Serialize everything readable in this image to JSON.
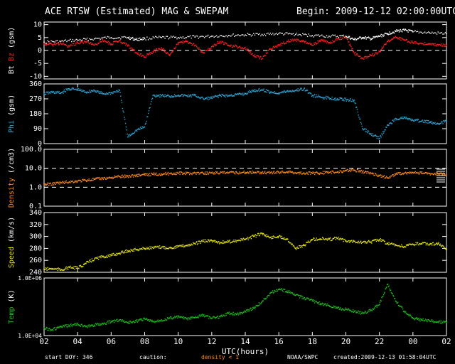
{
  "header": {
    "title": "ACE RTSW (Estimated) MAG & SWEPAM",
    "begin": "Begin: 2009-12-12 02:00:00UTC"
  },
  "footer": {
    "start_doy": "start DOY: 346",
    "caution": "caution:",
    "density_note": "density < 1",
    "source": "NOAA/SWPC",
    "created": "created:2009-12-13 01:58:04UTC"
  },
  "colors": {
    "bt": "#ffffff",
    "bz": "#ff2020",
    "phi": "#2aa7d8",
    "density": "#ff8c1a",
    "speed": "#e6e600",
    "temp": "#18c018",
    "caution": "#ff8c1a",
    "frame": "#ffffff",
    "background": "#000000"
  },
  "chart_data": [
    {
      "type": "scatter",
      "xlabel": "UTC(hours)",
      "x_ticks": [
        "02",
        "04",
        "06",
        "08",
        "10",
        "12",
        "14",
        "16",
        "18",
        "20",
        "22",
        "00",
        "02"
      ],
      "ylabel_parts": [
        "Bt",
        "Bz",
        "(gsm)"
      ],
      "ylim": [
        -11,
        11
      ],
      "y_ticks": [
        "10",
        "5",
        "0",
        "-5",
        "-10"
      ],
      "series": [
        {
          "name": "Bt",
          "color": "#ffffff",
          "x": [
            0,
            1,
            2,
            3,
            4,
            5,
            5.5,
            6,
            7,
            8,
            9,
            10,
            11,
            12,
            13,
            14,
            15,
            16,
            17,
            18,
            18.5,
            19,
            19.5,
            20,
            20.5,
            21,
            21.5,
            22,
            23,
            24
          ],
          "y": [
            3.2,
            3.5,
            4,
            4.5,
            5,
            5,
            4.2,
            4.6,
            5,
            5,
            5.2,
            5.5,
            5.8,
            6,
            6.2,
            6.5,
            6.2,
            5.8,
            5.5,
            5.5,
            4.2,
            5,
            4.5,
            5.5,
            6.5,
            7.5,
            7.8,
            7.2,
            6.8,
            6.5
          ]
        },
        {
          "name": "Bz",
          "color": "#ff2020",
          "x": [
            0,
            0.5,
            1,
            1.5,
            2,
            2.5,
            3,
            3.5,
            4,
            4.5,
            5,
            5.5,
            6,
            6.5,
            7,
            7.5,
            8,
            8.5,
            9,
            9.5,
            10,
            10.5,
            11,
            11.5,
            12,
            12.5,
            13,
            13.5,
            14,
            14.5,
            15,
            15.5,
            16,
            16.5,
            17,
            17.5,
            18,
            18.5,
            19,
            19.5,
            20,
            20.5,
            21,
            21.5,
            22,
            22.5,
            23,
            23.5,
            24
          ],
          "y": [
            2.5,
            2.2,
            2.8,
            1.5,
            3,
            3.5,
            2,
            4,
            2.5,
            3.8,
            2,
            -1,
            -2.5,
            -0.5,
            1,
            -2,
            3,
            3.5,
            2,
            -1,
            1.5,
            3.5,
            2,
            1.5,
            1,
            -2,
            -3,
            0.5,
            2,
            3.5,
            4,
            3.5,
            2,
            4,
            3,
            4.5,
            5,
            -1,
            -3,
            -2,
            -0.5,
            3.5,
            5,
            4,
            3,
            2.8,
            2.5,
            2.2,
            2
          ]
        }
      ]
    },
    {
      "type": "scatter",
      "ylabel": "Phi (gsm)",
      "ylim": [
        0,
        360
      ],
      "y_ticks": [
        "360",
        "270",
        "180",
        "90",
        "0"
      ],
      "series": [
        {
          "name": "Phi",
          "color": "#2aa7d8",
          "x": [
            0,
            0.5,
            1,
            1.5,
            2,
            2.5,
            3,
            3.5,
            4,
            4.5,
            5,
            5.5,
            6,
            6.5,
            7,
            7.5,
            8,
            8.5,
            9,
            9.5,
            10,
            10.5,
            11,
            11.5,
            12,
            12.5,
            13,
            13.5,
            14,
            14.5,
            15,
            15.5,
            16,
            16.5,
            17,
            17.5,
            18,
            18.5,
            19,
            19.5,
            20,
            20.5,
            21,
            21.5,
            22,
            22.5,
            23,
            23.5,
            24
          ],
          "y": [
            300,
            310,
            305,
            330,
            325,
            310,
            320,
            300,
            305,
            320,
            40,
            80,
            100,
            290,
            290,
            285,
            292,
            288,
            290,
            270,
            275,
            290,
            288,
            295,
            300,
            320,
            325,
            310,
            305,
            315,
            320,
            330,
            290,
            280,
            275,
            270,
            265,
            262,
            90,
            60,
            30,
            110,
            150,
            155,
            140,
            135,
            130,
            120,
            135
          ]
        }
      ]
    },
    {
      "type": "scatter",
      "ylabel": "Density (/cm3)",
      "yscale": "log",
      "ylim": [
        0.1,
        100
      ],
      "y_ticks": [
        "100.0",
        "10.0",
        "1.0",
        "0.1"
      ],
      "series": [
        {
          "name": "Density",
          "color": "#ff8c1a",
          "x": [
            0,
            0.5,
            1,
            1.5,
            2,
            2.5,
            3,
            3.5,
            4,
            4.5,
            5,
            5.5,
            6,
            6.5,
            7,
            7.5,
            8,
            8.5,
            9,
            9.5,
            10,
            10.5,
            11,
            11.5,
            12,
            12.5,
            13,
            13.5,
            14,
            14.5,
            15,
            15.5,
            16,
            16.5,
            17,
            17.5,
            18,
            18.5,
            19,
            19.5,
            20,
            20.5,
            21,
            21.5,
            22,
            22.5,
            23,
            23.5,
            24
          ],
          "y": [
            1.4,
            1.5,
            1.7,
            1.9,
            2.1,
            2.3,
            2.6,
            2.9,
            3.2,
            3.6,
            3.8,
            4.2,
            4.5,
            4.8,
            5,
            5.2,
            5.5,
            5.3,
            5.6,
            5.4,
            5.8,
            5.6,
            5.7,
            5.9,
            6,
            6.2,
            6,
            5.8,
            6.2,
            6.5,
            5.8,
            5.6,
            5.4,
            5.7,
            6,
            6.3,
            7.5,
            8,
            6.5,
            5.5,
            4,
            3.2,
            5,
            5.5,
            5.8,
            5.5,
            5.2,
            5,
            4.8
          ]
        }
      ]
    },
    {
      "type": "scatter",
      "ylabel": "Speed (km/s)",
      "ylim": [
        240,
        340
      ],
      "y_ticks": [
        "340",
        "320",
        "300",
        "280",
        "260",
        "240"
      ],
      "series": [
        {
          "name": "Speed",
          "color": "#e6e600",
          "x": [
            0,
            0.5,
            1,
            1.5,
            2,
            2.5,
            3,
            3.5,
            4,
            4.5,
            5,
            5.5,
            6,
            6.5,
            7,
            7.5,
            8,
            8.5,
            9,
            9.5,
            10,
            10.5,
            11,
            11.5,
            12,
            12.5,
            13,
            13.5,
            14,
            14.5,
            15,
            15.5,
            16,
            16.5,
            17,
            17.5,
            18,
            18.5,
            19,
            19.5,
            20,
            20.5,
            21,
            21.5,
            22,
            22.5,
            23,
            23.5,
            24
          ],
          "y": [
            245,
            246,
            244,
            248,
            247,
            255,
            262,
            266,
            268,
            272,
            276,
            278,
            280,
            281,
            282,
            281,
            283,
            285,
            288,
            292,
            293,
            290,
            291,
            293,
            295,
            300,
            305,
            298,
            300,
            296,
            280,
            285,
            295,
            296,
            295,
            297,
            293,
            292,
            290,
            291,
            295,
            288,
            285,
            283,
            287,
            288,
            287,
            288,
            278
          ]
        }
      ]
    },
    {
      "type": "scatter",
      "ylabel": "Temp (K)",
      "yscale": "log",
      "ylim": [
        10000,
        1000000
      ],
      "y_ticks": [
        "1.0E+06",
        "1.0E+04"
      ],
      "series": [
        {
          "name": "Temp",
          "color": "#18c018",
          "x": [
            0,
            0.5,
            1,
            1.5,
            2,
            2.5,
            3,
            3.5,
            4,
            4.5,
            5,
            5.5,
            6,
            6.5,
            7,
            7.5,
            8,
            8.5,
            9,
            9.5,
            10,
            10.5,
            11,
            11.5,
            12,
            12.5,
            13,
            13.5,
            14,
            14.5,
            15,
            15.5,
            16,
            16.5,
            17,
            17.5,
            18,
            18.5,
            19,
            19.5,
            20,
            20.5,
            21,
            21.5,
            22,
            22.5,
            23,
            23.5,
            24
          ],
          "y": [
            18000,
            16000,
            20000,
            22000,
            25000,
            20000,
            23000,
            26000,
            30000,
            35000,
            28000,
            32000,
            38000,
            30000,
            35000,
            40000,
            45000,
            38000,
            42000,
            50000,
            40000,
            45000,
            60000,
            55000,
            70000,
            90000,
            150000,
            300000,
            400000,
            350000,
            250000,
            200000,
            160000,
            130000,
            110000,
            90000,
            80000,
            70000,
            60000,
            75000,
            120000,
            600000,
            150000,
            70000,
            40000,
            35000,
            32000,
            30000,
            28000
          ]
        }
      ]
    }
  ]
}
